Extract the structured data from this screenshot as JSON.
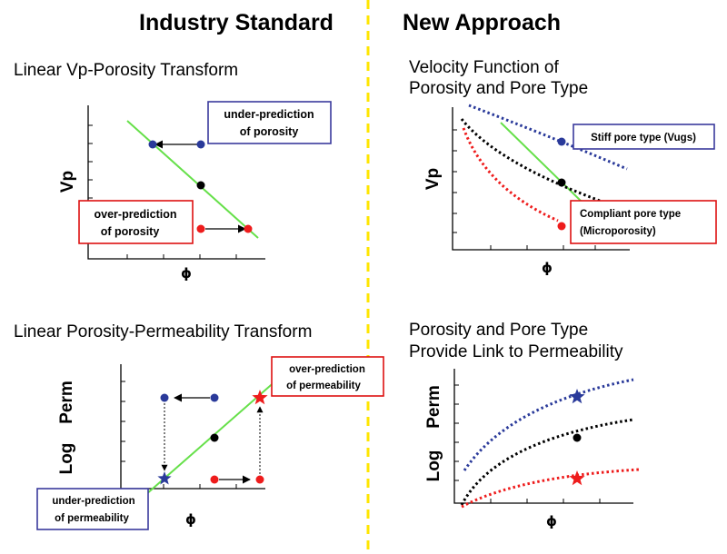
{
  "headers": {
    "left": "Industry Standard",
    "right": "New Approach"
  },
  "colors": {
    "blue": "#2a3a9a",
    "red": "#ee1c1c",
    "green": "#66e04a",
    "black": "#000000",
    "divider": "#ffe600",
    "box_blue": "#3a3a9c",
    "box_red": "#dd1111"
  },
  "panels": {
    "vp_porosity": {
      "title": "Linear Vp-Porosity Transform",
      "ylabel": "Vp",
      "xlabel": "ϕ",
      "note_under": [
        "under-prediction",
        "of porosity"
      ],
      "note_over": [
        "over-prediction",
        "of porosity"
      ]
    },
    "velocity_function": {
      "title": [
        "Velocity Function of",
        "Porosity and Pore Type"
      ],
      "ylabel": "Vp",
      "xlabel": "ϕ",
      "note_stiff": "Stiff pore type (Vugs)",
      "note_compliant": [
        "Compliant pore type",
        "(Microporosity)"
      ]
    },
    "porosity_permeability": {
      "title": "Linear Porosity-Permeability Transform",
      "ylabel": [
        "Log",
        "Perm"
      ],
      "xlabel": "ϕ",
      "note_over": [
        "over-prediction",
        "of permeability"
      ],
      "note_under": [
        "under-prediction",
        "of permeability"
      ]
    },
    "pore_type_link": {
      "title": [
        "Porosity and Pore Type",
        "Provide Link to Permeability"
      ],
      "ylabel": [
        "Log",
        "Perm"
      ],
      "xlabel": "ϕ"
    }
  }
}
